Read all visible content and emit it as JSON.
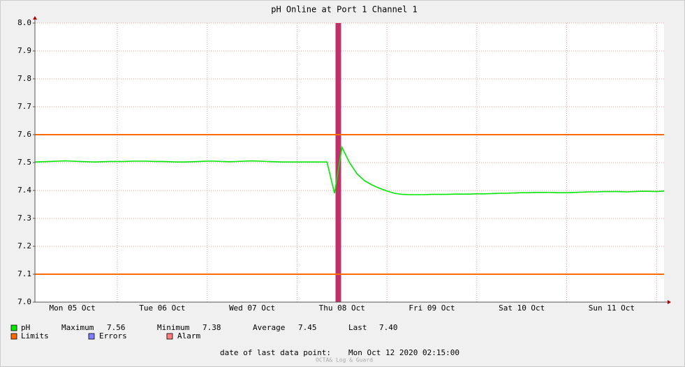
{
  "chart_data": {
    "type": "line",
    "title": "pH Online at Port 1 Channel 1",
    "categories": [
      null,
      null,
      null,
      null,
      null,
      "Mon 05 Oct",
      null,
      null,
      null,
      null,
      null,
      null,
      null,
      null,
      null,
      null,
      null,
      "Tue 06 Oct",
      null,
      null,
      null,
      null,
      null,
      null,
      null,
      null,
      null,
      null,
      null,
      "Wed 07 Oct",
      null,
      null,
      null,
      null,
      null,
      null,
      null,
      null,
      null,
      null,
      null,
      "Thu 08 Oct",
      null,
      null,
      null,
      null,
      null,
      null,
      null,
      null,
      null,
      null,
      null,
      "Fri 09 Oct",
      null,
      null,
      null,
      null,
      null,
      null,
      null,
      null,
      null,
      null,
      null,
      "Sat 10 Oct",
      null,
      null,
      null,
      null,
      null,
      null,
      null,
      null,
      null,
      null,
      null,
      "Sun 11 Oct",
      null,
      null,
      null,
      null,
      null,
      null,
      null
    ],
    "series": [
      {
        "name": "pH",
        "color": "#00e800",
        "values": [
          7.502,
          7.503,
          7.504,
          7.505,
          7.506,
          7.505,
          7.504,
          7.503,
          7.502,
          7.503,
          7.504,
          7.504,
          7.504,
          7.505,
          7.505,
          7.505,
          7.504,
          7.504,
          7.503,
          7.502,
          7.502,
          7.503,
          7.504,
          7.505,
          7.505,
          7.504,
          7.503,
          7.504,
          7.505,
          7.506,
          7.505,
          7.504,
          7.503,
          7.502,
          7.502,
          7.502,
          7.502,
          7.502,
          7.502,
          7.502,
          7.39,
          7.555,
          7.5,
          7.46,
          7.435,
          7.42,
          7.408,
          7.398,
          7.39,
          7.386,
          7.385,
          7.385,
          7.385,
          7.386,
          7.386,
          7.386,
          7.387,
          7.387,
          7.387,
          7.388,
          7.388,
          7.389,
          7.39,
          7.39,
          7.391,
          7.392,
          7.392,
          7.393,
          7.393,
          7.393,
          7.392,
          7.392,
          7.393,
          7.394,
          7.395,
          7.395,
          7.396,
          7.396,
          7.396,
          7.395,
          7.396,
          7.397,
          7.397,
          7.396,
          7.398
        ]
      }
    ],
    "limits": {
      "name": "Limits",
      "color": "#ff6a00",
      "values": [
        7.6,
        7.1
      ]
    },
    "legend_extra": [
      {
        "name": "Errors",
        "color": "#7f7fff"
      },
      {
        "name": "Alarm",
        "color": "#ff7f7f"
      }
    ],
    "stats": [
      {
        "label": "Maximum",
        "value": 7.56
      },
      {
        "label": "Minimum",
        "value": 7.38
      },
      {
        "label": "Average",
        "value": 7.45
      },
      {
        "label": "Last",
        "value": 7.4,
        "value_label": "7.40"
      }
    ],
    "ylim": [
      7.0,
      8.0
    ],
    "yticks": [
      {
        "value": 7,
        "label": "7.0"
      },
      7.1,
      7.2,
      7.3,
      7.4,
      7.5,
      7.6,
      7.7,
      7.8,
      7.9,
      {
        "value": 8,
        "label": "8.0"
      }
    ],
    "grid": true,
    "footer_label": "date of last data point:",
    "footer_date": "Mon Oct 12 2020 02:15:00",
    "watermark": "OCTA& Log & Guard"
  }
}
